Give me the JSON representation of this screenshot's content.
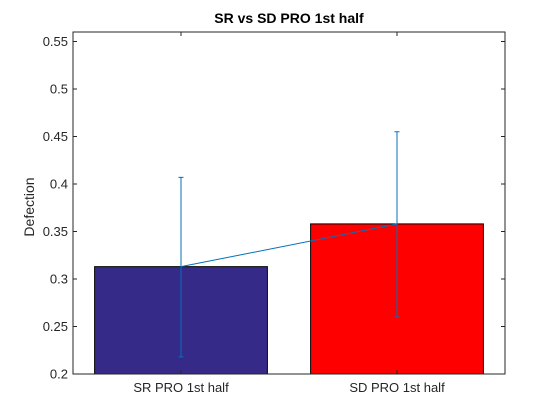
{
  "chart_data": {
    "type": "bar",
    "title": "SR vs SD PRO 1st half",
    "xlabel": "",
    "ylabel": "Defection",
    "categories": [
      "SR PRO 1st half",
      "SD PRO 1st half"
    ],
    "values": [
      0.313,
      0.358
    ],
    "error_low": [
      0.218,
      0.26
    ],
    "error_high": [
      0.407,
      0.455
    ],
    "bar_colors": [
      "#352a87",
      "#ff0000"
    ],
    "line_color": "#0072bd",
    "errorbar_color": "#0072bd",
    "connecting_line": true,
    "ylim": [
      0.2,
      0.56
    ],
    "yticks": [
      0.2,
      0.25,
      0.3,
      0.35,
      0.4,
      0.45,
      0.5,
      0.55
    ],
    "ytick_labels": [
      "0.2",
      "0.25",
      "0.3",
      "0.35",
      "0.4",
      "0.45",
      "0.5",
      "0.55"
    ],
    "grid": false,
    "legend": "none"
  }
}
